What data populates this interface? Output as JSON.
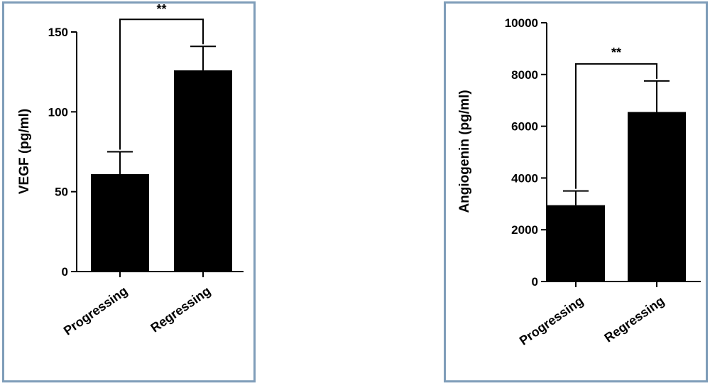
{
  "chart_data": [
    {
      "type": "bar",
      "categories": [
        "Progressing",
        "Regressing"
      ],
      "values": [
        61,
        126
      ],
      "error": [
        14,
        15
      ],
      "title": "",
      "xlabel": "",
      "ylabel": "VEGF (pg/ml)",
      "ylim": [
        0,
        150
      ],
      "yticks": [
        0,
        50,
        100,
        150
      ],
      "yticklabels": [
        "0",
        "50",
        "100",
        "150"
      ],
      "significance": "**",
      "grid": false
    },
    {
      "type": "bar",
      "categories": [
        "Progressing",
        "Regressing"
      ],
      "values": [
        2950,
        6550
      ],
      "error": [
        550,
        1200
      ],
      "title": "",
      "xlabel": "",
      "ylabel": "Angiogenin (pg/ml)",
      "ylim": [
        0,
        10000
      ],
      "yticks": [
        0,
        2000,
        4000,
        6000,
        8000,
        10000
      ],
      "yticklabels": [
        "0",
        "2000",
        "4000",
        "6000",
        "8000",
        "10000"
      ],
      "significance": "**",
      "grid": false
    }
  ],
  "colors": {
    "bar": "#000000",
    "frame": "#7f9db9"
  }
}
